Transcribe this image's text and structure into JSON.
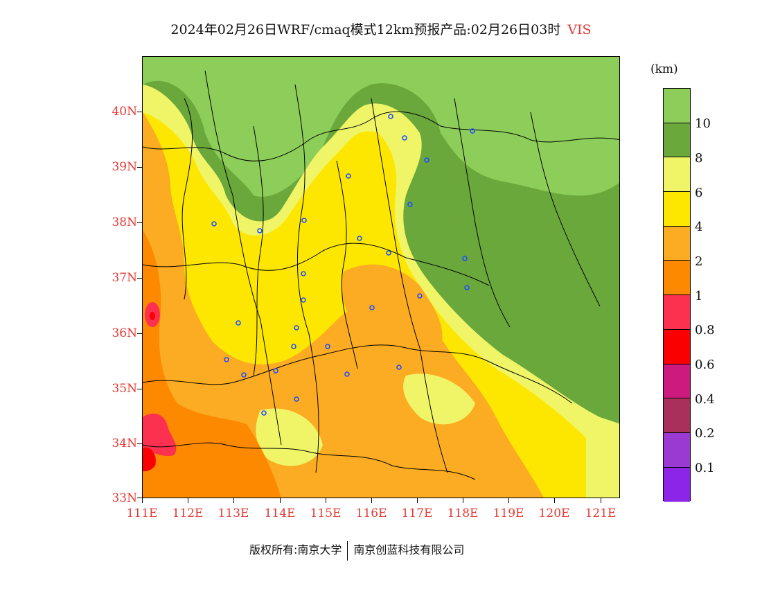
{
  "title": {
    "main": "2024年02月26日WRF/cmaq模式12km预报产品:02月26日03时",
    "variable": "VIS"
  },
  "lat_labels": [
    "40N",
    "39N",
    "38N",
    "37N",
    "36N",
    "35N",
    "34N",
    "33N"
  ],
  "lon_labels": [
    "111E",
    "112E",
    "113E",
    "114E",
    "115E",
    "116E",
    "117E",
    "118E",
    "119E",
    "120E",
    "121E"
  ],
  "legend": {
    "unit": "(km)",
    "labels": [
      "10",
      "8",
      "6",
      "4",
      "2",
      "1",
      "0.8",
      "0.6",
      "0.4",
      "0.2",
      "0.1"
    ],
    "colors": [
      "#8dce5a",
      "#6aa83c",
      "#f0f567",
      "#fde700",
      "#fbac22",
      "#fc8900",
      "#fc3150",
      "#fb0000",
      "#cc1a7e",
      "#a8305a",
      "#9a3ad2",
      "#8d25e8"
    ]
  },
  "footer": {
    "copyright": "版权所有:南京大学",
    "company": "南京创蓝科技有限公司"
  }
}
